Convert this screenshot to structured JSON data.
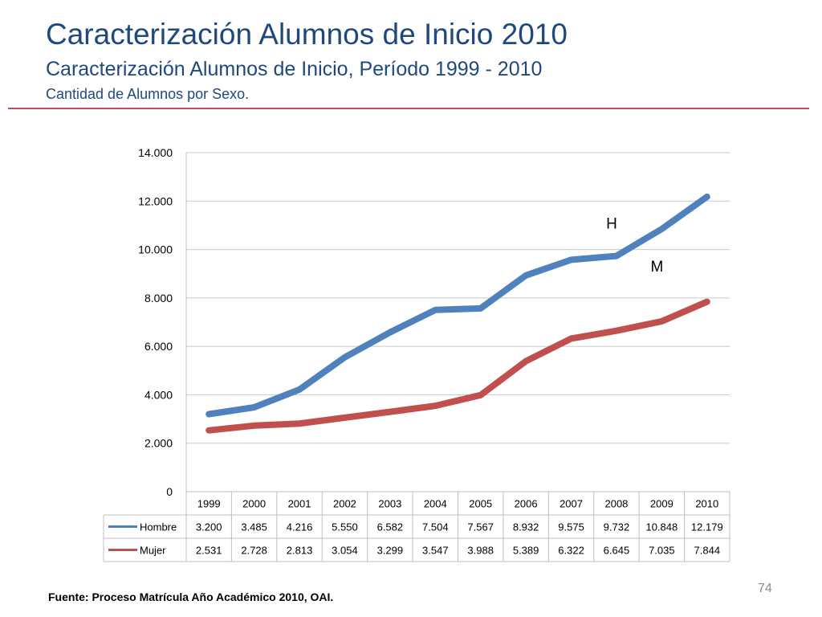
{
  "header": {
    "title": "Caracterización Alumnos de Inicio 2010",
    "subtitle": "Caracterización Alumnos de Inicio, Período 1999 - 2010",
    "caption": "Cantidad de Alumnos por Sexo."
  },
  "footer": {
    "source": "Fuente: Proceso Matrícula Año Académico 2010, OAI.",
    "page_number": "74"
  },
  "colors": {
    "title": "#1f497d",
    "rule": "#c0504d"
  },
  "chart_data": {
    "type": "line",
    "categories": [
      "1999",
      "2000",
      "2001",
      "2002",
      "2003",
      "2004",
      "2005",
      "2006",
      "2007",
      "2008",
      "2009",
      "2010"
    ],
    "series": [
      {
        "name": "Hombre",
        "color": "#4f81bd",
        "annotation": "H",
        "values": [
          3200,
          3485,
          4216,
          5550,
          6582,
          7504,
          7567,
          8932,
          9575,
          9732,
          10848,
          12179
        ],
        "labels": [
          "3.200",
          "3.485",
          "4.216",
          "5.550",
          "6.582",
          "7.504",
          "7.567",
          "8.932",
          "9.575",
          "9.732",
          "10.848",
          "12.179"
        ]
      },
      {
        "name": "Mujer",
        "color": "#c0504d",
        "annotation": "M",
        "values": [
          2531,
          2728,
          2813,
          3054,
          3299,
          3547,
          3988,
          5389,
          6322,
          6645,
          7035,
          7844
        ],
        "labels": [
          "2.531",
          "2.728",
          "2.813",
          "3.054",
          "3.299",
          "3.547",
          "3.988",
          "5.389",
          "6.322",
          "6.645",
          "7.035",
          "7.844"
        ]
      }
    ],
    "ylim": [
      0,
      14000
    ],
    "yticks": [
      0,
      2000,
      4000,
      6000,
      8000,
      10000,
      12000,
      14000
    ],
    "ytick_labels": [
      "0",
      "2.000",
      "4.000",
      "6.000",
      "8.000",
      "10.000",
      "12.000",
      "14.000"
    ],
    "grid": true,
    "legend": "data-table-left"
  }
}
